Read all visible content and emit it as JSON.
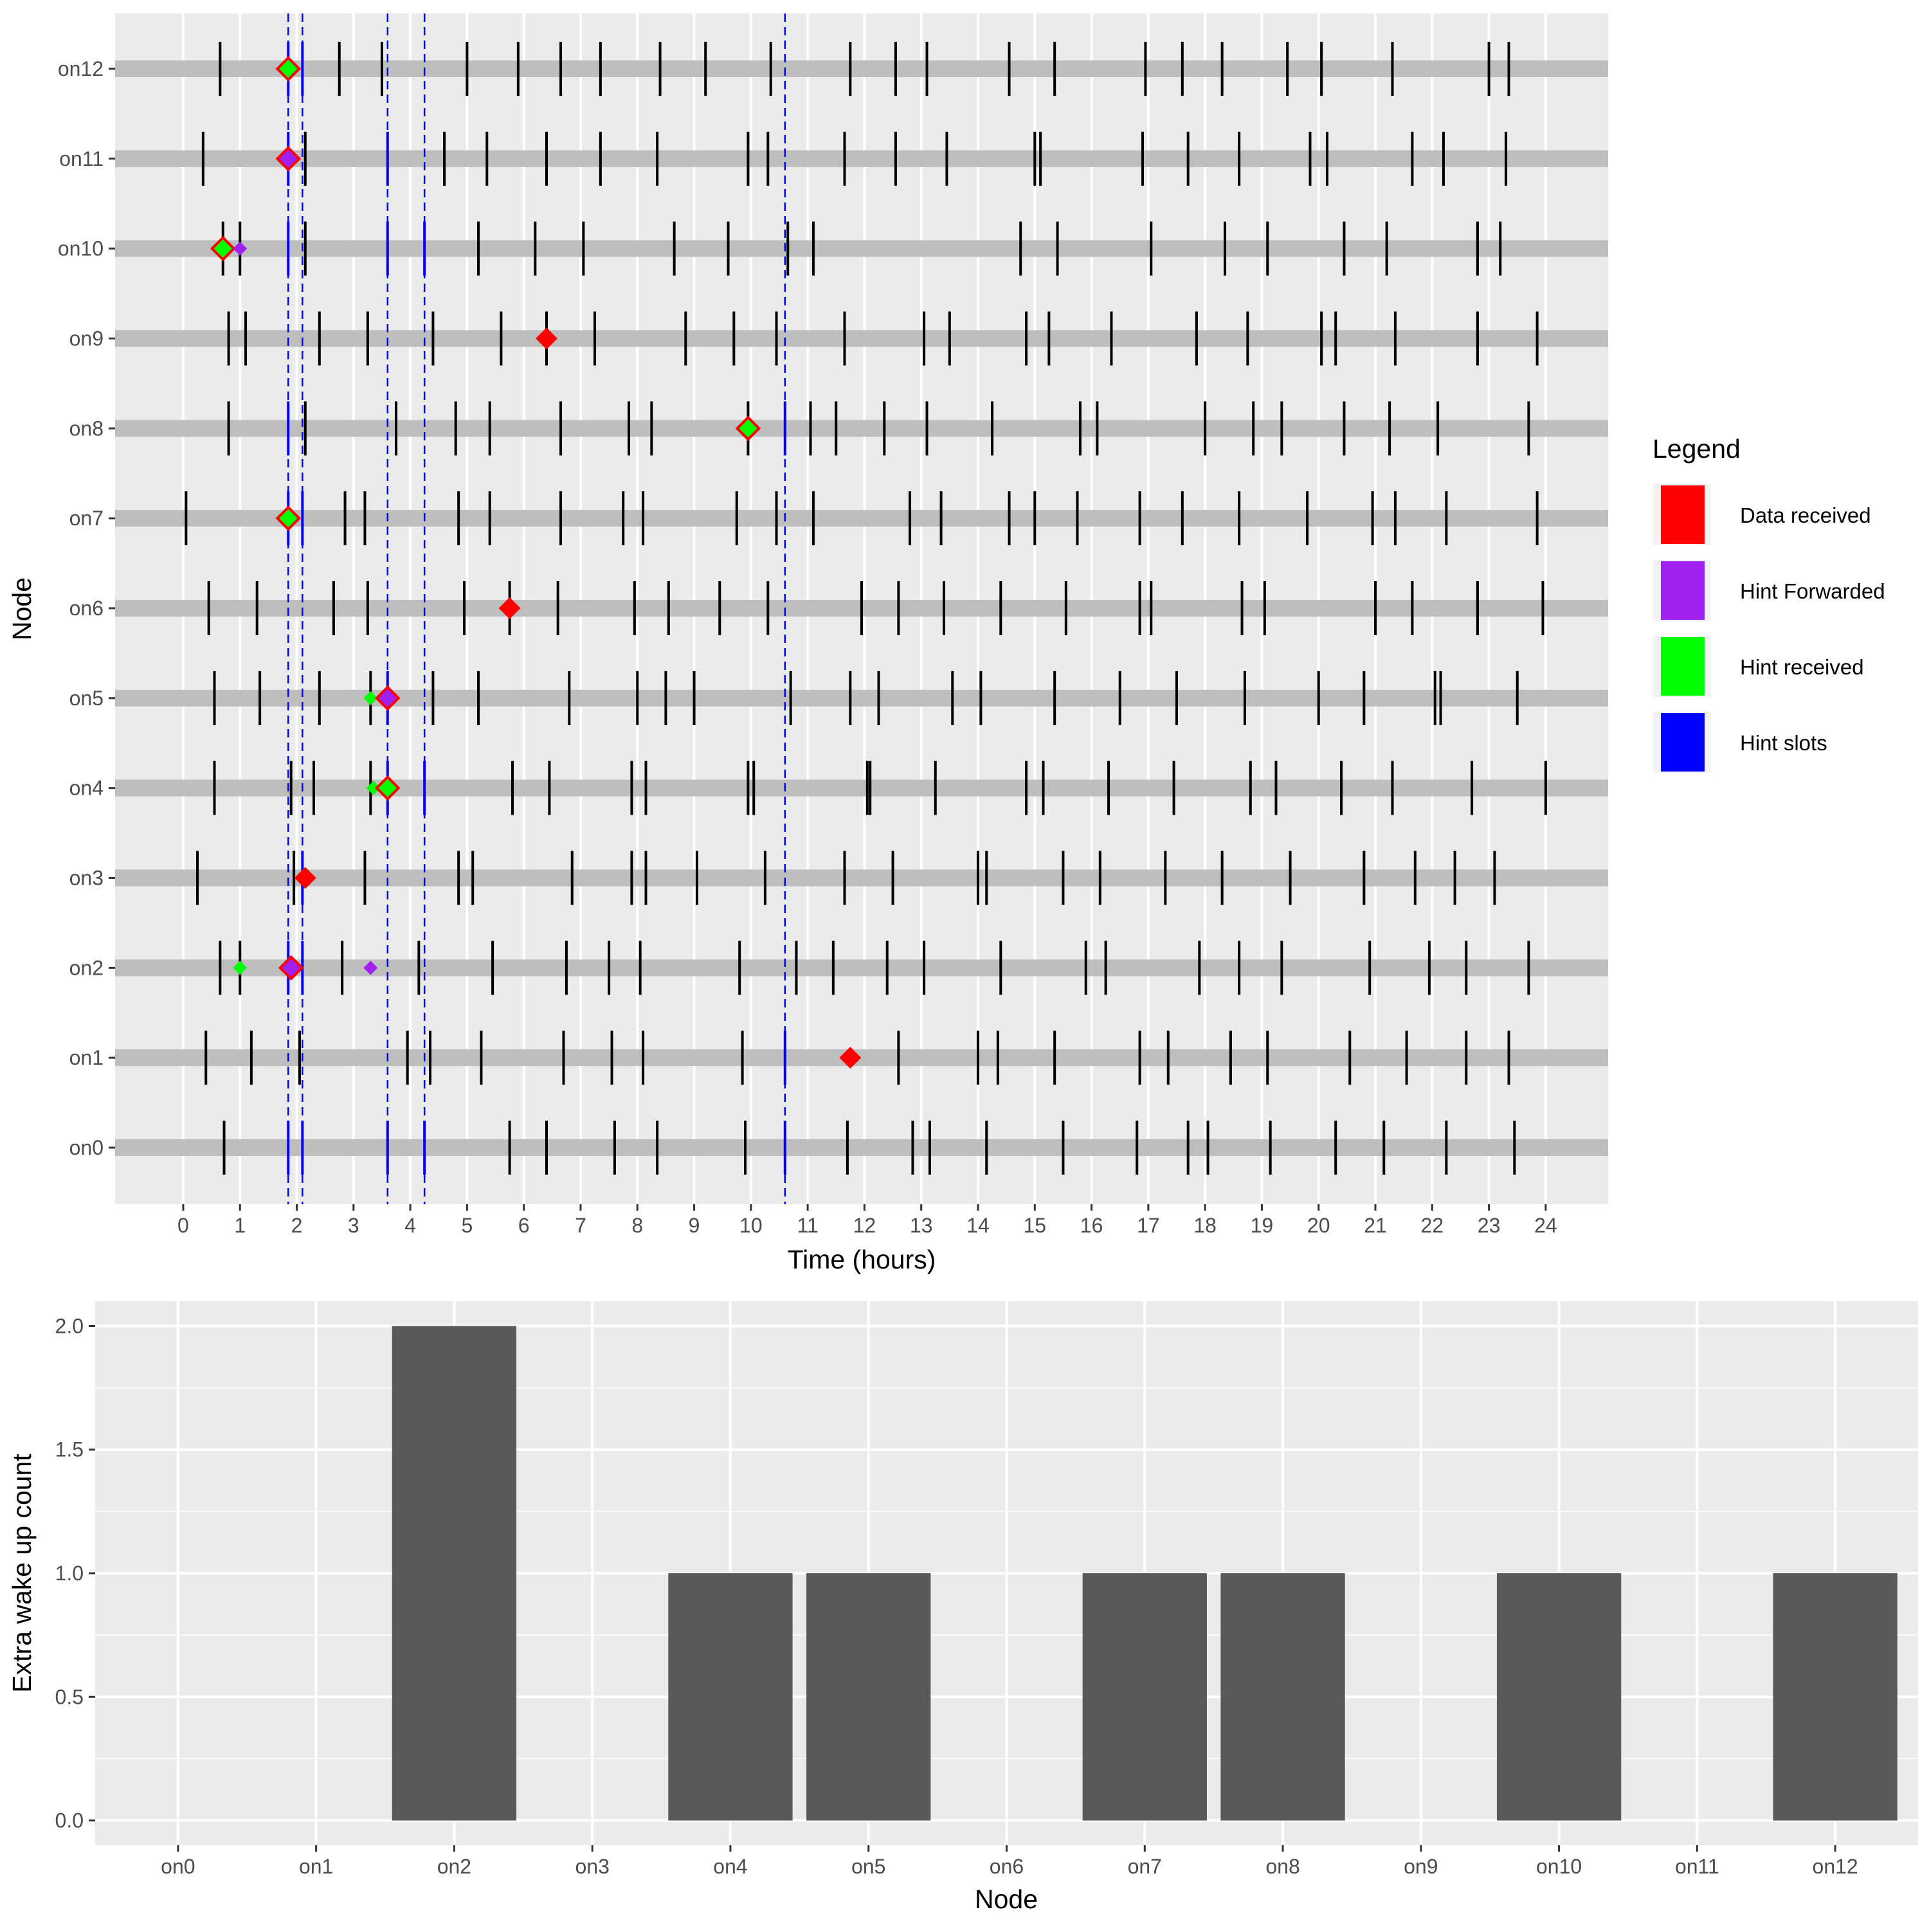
{
  "chart_data": [
    {
      "type": "scatter",
      "xlabel": "Time (hours)",
      "ylabel": "Node",
      "xlim": [
        -1.2,
        25.1
      ],
      "x_ticks": [
        0,
        1,
        2,
        3,
        4,
        5,
        6,
        7,
        8,
        9,
        10,
        11,
        12,
        13,
        14,
        15,
        16,
        17,
        18,
        19,
        20,
        21,
        22,
        23,
        24
      ],
      "nodes": [
        "on0",
        "on1",
        "on2",
        "on3",
        "on4",
        "on5",
        "on6",
        "on7",
        "on8",
        "on9",
        "on10",
        "on11",
        "on12"
      ],
      "grid": true,
      "legend": {
        "title": "Legend",
        "placement": "right",
        "entries": [
          {
            "label": "Data received",
            "color": "#ff0000"
          },
          {
            "label": "Hint Forwarded",
            "color": "#a020f0"
          },
          {
            "label": "Hint received",
            "color": "#00ff00"
          },
          {
            "label": "Hint slots",
            "color": "#0000ff"
          }
        ]
      },
      "hint_slot_lines": [
        1.85,
        2.1,
        3.6,
        4.25,
        10.6
      ],
      "wakeups": {
        "on0": [
          0.72,
          1.85,
          2.1,
          3.6,
          4.25,
          5.75,
          6.4,
          7.6,
          8.35,
          9.9,
          10.6,
          11.7,
          12.85,
          13.15,
          14.15,
          15.5,
          16.8,
          17.7,
          18.05,
          19.15,
          20.3,
          21.15,
          22.25,
          23.45
        ],
        "on1": [
          0.4,
          1.2,
          2.05,
          3.95,
          4.35,
          5.25,
          6.7,
          7.55,
          8.1,
          9.85,
          10.6,
          12.6,
          14.0,
          14.35,
          15.35,
          16.85,
          17.35,
          18.45,
          19.1,
          20.55,
          21.55,
          22.6,
          23.35
        ],
        "on2": [
          0.65,
          1.0,
          1.85,
          2.1,
          2.8,
          4.15,
          5.45,
          6.75,
          7.5,
          8.05,
          9.8,
          10.8,
          11.45,
          12.4,
          13.05,
          14.4,
          15.9,
          16.25,
          17.9,
          18.6,
          19.35,
          20.9,
          21.95,
          22.6,
          23.7
        ],
        "on3": [
          0.25,
          1.95,
          2.1,
          3.2,
          4.85,
          5.1,
          6.85,
          7.9,
          8.15,
          9.05,
          10.25,
          11.65,
          12.5,
          14.0,
          14.15,
          15.5,
          16.15,
          17.3,
          18.3,
          19.5,
          20.8,
          21.7,
          22.4,
          23.1
        ],
        "on4": [
          0.55,
          1.9,
          2.3,
          3.3,
          3.6,
          4.25,
          5.8,
          6.45,
          7.9,
          8.15,
          9.95,
          10.05,
          12.05,
          12.1,
          13.25,
          14.85,
          15.15,
          16.3,
          17.45,
          18.8,
          19.25,
          20.4,
          21.3,
          22.7,
          24.0
        ],
        "on5": [
          0.55,
          1.35,
          2.4,
          3.3,
          3.6,
          4.4,
          5.2,
          6.8,
          8.0,
          8.5,
          9.0,
          10.7,
          11.75,
          12.25,
          13.55,
          14.05,
          15.35,
          16.5,
          17.5,
          18.7,
          20.0,
          20.8,
          22.05,
          22.15,
          23.5
        ],
        "on6": [
          0.45,
          1.3,
          2.65,
          3.25,
          4.95,
          5.75,
          6.6,
          7.95,
          8.55,
          9.45,
          10.3,
          11.95,
          12.6,
          13.4,
          14.4,
          15.55,
          16.85,
          17.05,
          18.65,
          19.05,
          21.0,
          21.65,
          22.8,
          23.95
        ],
        "on7": [
          0.05,
          1.85,
          2.1,
          2.85,
          3.2,
          4.85,
          5.4,
          6.65,
          7.75,
          8.1,
          9.75,
          10.45,
          11.1,
          12.8,
          13.35,
          14.55,
          15.0,
          15.75,
          16.85,
          17.6,
          18.6,
          19.8,
          20.95,
          21.35,
          22.25,
          23.85
        ],
        "on8": [
          0.8,
          1.85,
          2.15,
          3.75,
          4.8,
          5.4,
          6.65,
          7.85,
          8.25,
          9.95,
          10.6,
          11.05,
          11.5,
          12.35,
          13.1,
          14.25,
          15.8,
          16.1,
          18.0,
          18.85,
          19.35,
          20.45,
          21.25,
          22.1,
          23.7
        ],
        "on9": [
          0.8,
          1.1,
          2.4,
          3.25,
          4.4,
          5.6,
          6.4,
          7.25,
          8.85,
          9.7,
          10.45,
          11.65,
          13.05,
          13.5,
          14.85,
          15.25,
          16.35,
          17.85,
          18.75,
          20.05,
          20.3,
          21.35,
          22.8,
          23.85
        ],
        "on10": [
          0.7,
          1.0,
          1.85,
          2.15,
          3.6,
          4.25,
          5.2,
          6.2,
          7.05,
          8.65,
          9.6,
          10.65,
          11.1,
          14.75,
          15.4,
          17.05,
          18.35,
          19.1,
          20.45,
          21.2,
          22.8,
          23.2
        ],
        "on11": [
          0.35,
          1.85,
          2.15,
          3.6,
          4.6,
          5.35,
          6.4,
          7.35,
          8.35,
          9.95,
          10.3,
          11.65,
          12.55,
          13.45,
          15.0,
          15.1,
          16.9,
          17.7,
          18.6,
          19.85,
          20.15,
          21.65,
          22.2,
          23.3
        ],
        "on12": [
          0.65,
          1.85,
          2.1,
          2.75,
          3.5,
          5.0,
          5.9,
          6.65,
          7.35,
          8.4,
          9.2,
          10.35,
          11.75,
          12.55,
          13.1,
          14.55,
          15.35,
          16.95,
          17.6,
          18.3,
          19.45,
          20.05,
          21.3,
          23.0,
          23.35
        ]
      },
      "markers": [
        {
          "node": "on12",
          "x": 1.85,
          "type": "Hint received",
          "size": "large",
          "outline": "Data received"
        },
        {
          "node": "on11",
          "x": 1.85,
          "type": "Hint Forwarded",
          "size": "large",
          "outline": "Data received"
        },
        {
          "node": "on10",
          "x": 0.7,
          "type": "Hint received",
          "size": "large",
          "outline": "Data received"
        },
        {
          "node": "on10",
          "x": 1.0,
          "type": "Hint Forwarded",
          "size": "small"
        },
        {
          "node": "on9",
          "x": 6.4,
          "type": "Data received",
          "size": "large"
        },
        {
          "node": "on8",
          "x": 9.95,
          "type": "Hint received",
          "size": "large",
          "outline": "Data received"
        },
        {
          "node": "on7",
          "x": 1.85,
          "type": "Hint received",
          "size": "large",
          "outline": "Data received"
        },
        {
          "node": "on6",
          "x": 5.75,
          "type": "Data received",
          "size": "large"
        },
        {
          "node": "on5",
          "x": 3.3,
          "type": "Hint received",
          "size": "small"
        },
        {
          "node": "on5",
          "x": 3.6,
          "type": "Hint Forwarded",
          "size": "large",
          "outline": "Data received"
        },
        {
          "node": "on4",
          "x": 3.35,
          "type": "Hint received",
          "size": "small"
        },
        {
          "node": "on4",
          "x": 3.6,
          "type": "Hint received",
          "size": "large",
          "outline": "Data received"
        },
        {
          "node": "on3",
          "x": 2.15,
          "type": "Data received",
          "size": "large"
        },
        {
          "node": "on2",
          "x": 1.0,
          "type": "Hint received",
          "size": "small"
        },
        {
          "node": "on2",
          "x": 1.9,
          "type": "Hint Forwarded",
          "size": "large",
          "outline": "Data received"
        },
        {
          "node": "on2",
          "x": 3.3,
          "type": "Hint Forwarded",
          "size": "small"
        },
        {
          "node": "on1",
          "x": 11.75,
          "type": "Data received",
          "size": "large"
        }
      ]
    },
    {
      "type": "bar",
      "xlabel": "Node",
      "ylabel": "Extra wake up count",
      "categories": [
        "on0",
        "on1",
        "on2",
        "on3",
        "on4",
        "on5",
        "on6",
        "on7",
        "on8",
        "on9",
        "on10",
        "on11",
        "on12"
      ],
      "values": [
        0,
        0,
        2,
        0,
        1,
        1,
        0,
        1,
        1,
        0,
        1,
        0,
        1
      ],
      "ylim": [
        -0.1,
        2.1
      ],
      "y_ticks": [
        "0.0",
        "0.5",
        "1.0",
        "1.5",
        "2.0"
      ],
      "bar_color": "#595959",
      "grid": true
    }
  ]
}
